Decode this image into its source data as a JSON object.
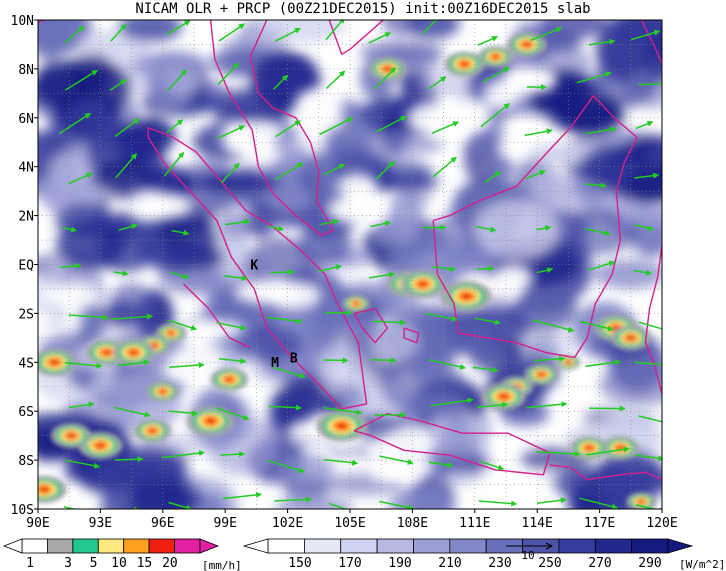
{
  "title": "NICAM OLR + PRCP (00Z21DEC2015) init:00Z16DEC2015 slab",
  "map": {
    "lon_range": [
      90,
      120
    ],
    "lat_range": [
      -10,
      10
    ],
    "lat_labels": [
      "10N",
      "8N",
      "6N",
      "4N",
      "2N",
      "EQ",
      "2S",
      "4S",
      "6S",
      "8S",
      "10S"
    ],
    "lon_labels": [
      "90E",
      "93E",
      "96E",
      "99E",
      "102E",
      "105E",
      "108E",
      "111E",
      "114E",
      "117E",
      "120E"
    ],
    "annotations": [
      {
        "text": "K",
        "lon": 100.4,
        "lat": -0.2
      },
      {
        "text": "M",
        "lon": 101.4,
        "lat": -4.2
      },
      {
        "text": "B",
        "lon": 102.3,
        "lat": -4.0
      }
    ],
    "colors": {
      "ocean_white": "#ffffff",
      "olr_low": "#e2e4f4",
      "olr_high": "#1c2588",
      "coastline": "#d4208c",
      "wind_vector": "#22cc22",
      "grid": "#888888"
    }
  },
  "prcp_colorbar": {
    "labels": [
      "1",
      "3",
      "5",
      "10",
      "15",
      "20"
    ],
    "unit": "[mm/h]",
    "colors": [
      "#ffffff",
      "#a8a8a8",
      "#22c890",
      "#ffe880",
      "#ffa020",
      "#f02010",
      "#e020a0"
    ]
  },
  "olr_colorbar": {
    "labels": [
      "150",
      "170",
      "190",
      "210",
      "230",
      "250",
      "270",
      "290"
    ],
    "unit": "[W/m^2]",
    "colors": [
      "#ffffff",
      "#e6e8f6",
      "#cfd2ee",
      "#b6b9e2",
      "#9ca0d6",
      "#8287c8",
      "#686eba",
      "#4e54aa",
      "#363c9c",
      "#22288e",
      "#141a80"
    ]
  },
  "vector_reference": {
    "label": "10"
  }
}
